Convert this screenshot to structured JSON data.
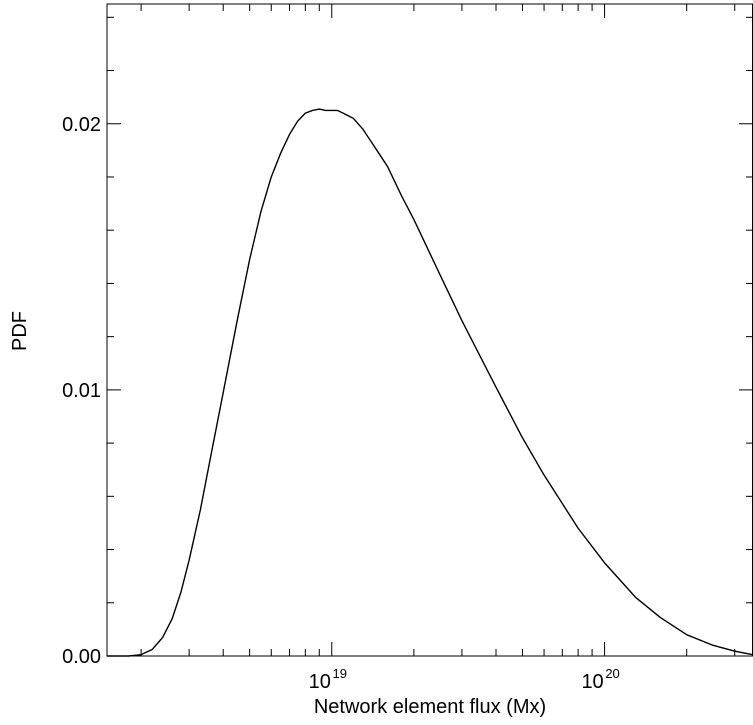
{
  "chart_data": {
    "type": "line",
    "xlabel": "Network element flux (Mx)",
    "ylabel": "PDF",
    "x_scale": "log",
    "xlim": [
      1.5e+18,
      3.5e+20
    ],
    "ylim": [
      0,
      0.0245
    ],
    "grid": false,
    "y_ticks": [
      {
        "value": 0.0,
        "label": "0.00"
      },
      {
        "value": 0.01,
        "label": "0.01"
      },
      {
        "value": 0.02,
        "label": "0.02"
      }
    ],
    "x_ticks": [
      {
        "value": 1e+19,
        "base": "10",
        "exp": "19"
      },
      {
        "value": 1e+20,
        "base": "10",
        "exp": "20"
      }
    ],
    "series": [
      {
        "x": [
          1.5e+18,
          1.8e+18,
          2e+18,
          2.2e+18,
          2.4e+18,
          2.6e+18,
          2.8e+18,
          3e+18,
          3.3e+18,
          3.6e+18,
          4e+18,
          4.5e+18,
          5e+18,
          5.5e+18,
          6e+18,
          6.5e+18,
          7e+18,
          7.5e+18,
          8e+18,
          8.5e+18,
          9e+18,
          9.5e+18,
          1e+19,
          1.05e+19,
          1.1e+19,
          1.2e+19,
          1.3e+19,
          1.4e+19,
          1.6e+19,
          1.8e+19,
          2e+19,
          2.5e+19,
          3e+19,
          4e+19,
          5e+19,
          6e+19,
          8e+19,
          1e+20,
          1.3e+20,
          1.6e+20,
          2e+20,
          2.5e+20,
          3e+20,
          3.5e+20
        ],
        "y": [
          0.0,
          0.0,
          5e-05,
          0.00025,
          0.0007,
          0.0014,
          0.0024,
          0.0036,
          0.0055,
          0.0075,
          0.0099,
          0.0126,
          0.0149,
          0.0167,
          0.018,
          0.0189,
          0.0196,
          0.0201,
          0.0204,
          0.0205,
          0.02055,
          0.0205,
          0.0205,
          0.0205,
          0.0204,
          0.0202,
          0.0198,
          0.0193,
          0.0184,
          0.0173,
          0.0164,
          0.0143,
          0.0126,
          0.0101,
          0.0082,
          0.0068,
          0.0048,
          0.0035,
          0.0022,
          0.00145,
          0.0008,
          0.0004,
          0.00018,
          5e-05
        ]
      }
    ]
  }
}
